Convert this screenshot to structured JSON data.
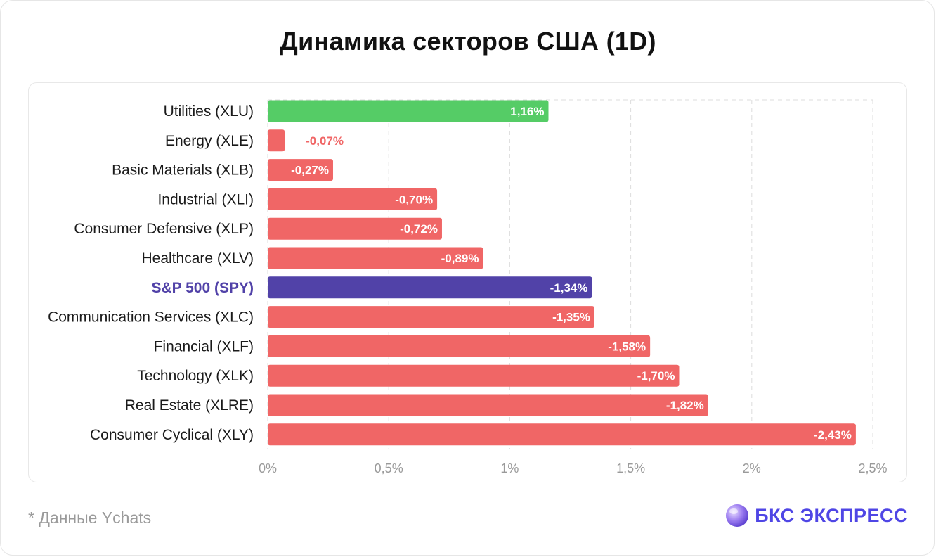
{
  "title": "Динамика секторов США (1D)",
  "footnote": "* Данные Ychats",
  "logo": {
    "text": "БКС ЭКСПРЕСС",
    "icon": "bcs-sphere-icon",
    "color": "#4f46e5"
  },
  "colors": {
    "positive": "#55cc66",
    "negative": "#f06666",
    "benchmark": "#5142a8",
    "benchmark_label": "#5142a8",
    "negative_outside_label": "#f06666"
  },
  "chart_data": {
    "type": "bar",
    "orientation": "horizontal",
    "categories": [
      "Utilities (XLU)",
      "Energy (XLE)",
      "Basic Materials (XLB)",
      "Industrial (XLI)",
      "Consumer Defensive (XLP)",
      "Healthcare (XLV)",
      "S&P 500 (SPY)",
      "Communication Services (XLC)",
      "Financial (XLF)",
      "Technology (XLK)",
      "Real Estate (XLRE)",
      "Consumer Cyclical (XLY)"
    ],
    "values": [
      1.16,
      -0.07,
      -0.27,
      -0.7,
      -0.72,
      -0.89,
      -1.34,
      -1.35,
      -1.58,
      -1.7,
      -1.82,
      -2.43
    ],
    "data_labels": [
      "1,16%",
      "-0,07%",
      "-0,27%",
      "-0,70%",
      "-0,72%",
      "-0,89%",
      "-1,34%",
      "-1,35%",
      "-1,58%",
      "-1,70%",
      "-1,82%",
      "-2,43%"
    ],
    "highlight": "S&P 500 (SPY)",
    "bar_length": "absolute value",
    "xlim": [
      0,
      2.5
    ],
    "x_ticks": [
      0,
      0.5,
      1,
      1.5,
      2,
      2.5
    ],
    "x_tick_labels": [
      "0%",
      "0,5%",
      "1%",
      "1,5%",
      "2%",
      "2,5%"
    ],
    "grid": "vertical dashed",
    "legend": "none"
  }
}
